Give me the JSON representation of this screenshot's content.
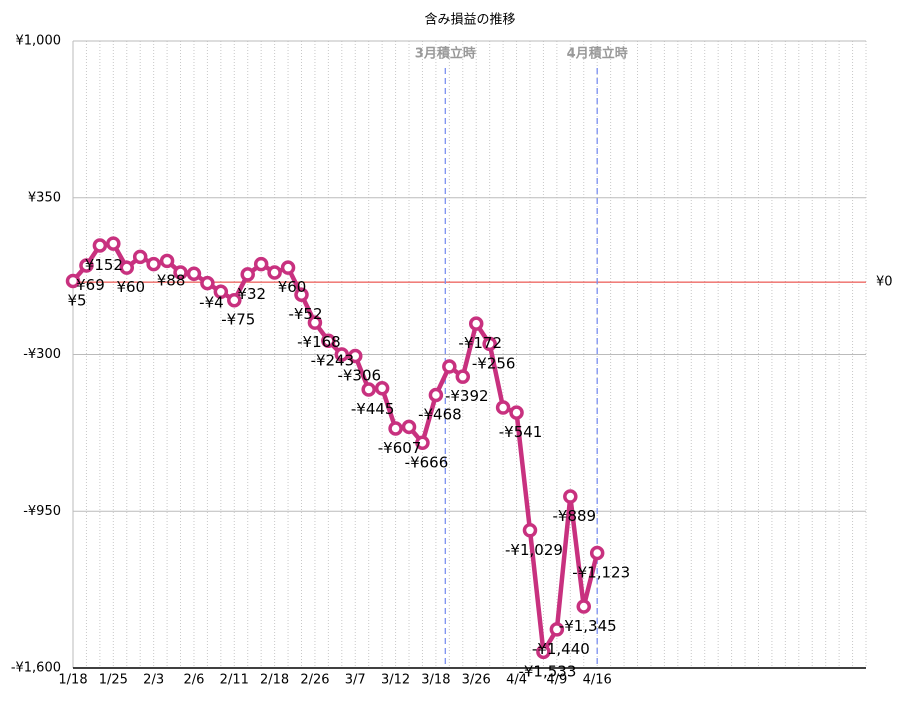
{
  "chart_data": {
    "type": "line",
    "title": "含み損益の推移",
    "categories": [
      "1/18",
      null,
      null,
      "1/25",
      null,
      null,
      "2/3",
      null,
      null,
      "2/6",
      null,
      null,
      "2/11",
      null,
      null,
      "2/18",
      null,
      null,
      "2/26",
      null,
      null,
      "3/7",
      null,
      null,
      "3/12",
      null,
      null,
      "3/18",
      null,
      null,
      "3/26",
      null,
      null,
      "4/4",
      null,
      null,
      "4/9",
      null,
      null,
      "4/16",
      null,
      null,
      null,
      null,
      null,
      null,
      null,
      null,
      null,
      null,
      null,
      null,
      null,
      null,
      null,
      null,
      null,
      null,
      null,
      null
    ],
    "series": [
      {
        "color": "#c8317f",
        "values": [
          5,
          69,
          152,
          160,
          60,
          105,
          75,
          88,
          40,
          35,
          -4,
          -40,
          -75,
          32,
          75,
          40,
          60,
          -52,
          -168,
          -243,
          -300,
          -306,
          -445,
          -440,
          -607,
          -600,
          -666,
          -468,
          -350,
          -392,
          -172,
          -256,
          -520,
          -541,
          -1029,
          -1533,
          -1440,
          -889,
          -1345,
          -1123,
          null,
          null,
          null,
          null,
          null,
          null,
          null,
          null,
          null,
          null,
          null,
          null,
          null,
          null,
          null,
          null,
          null,
          null,
          null,
          null
        ],
        "value_labels": [
          "¥5",
          "¥69",
          "¥152",
          null,
          "¥60",
          null,
          null,
          "¥88",
          null,
          null,
          "-¥4",
          null,
          "-¥75",
          "¥32",
          null,
          null,
          "¥60",
          "-¥52",
          "-¥168",
          "-¥243",
          null,
          "-¥306",
          "-¥445",
          null,
          "-¥607",
          null,
          "-¥666",
          "-¥468",
          null,
          "-¥392",
          "-¥172",
          "-¥256",
          null,
          "-¥541",
          "-¥1,029",
          "-¥1,533",
          "-¥1,440",
          "-¥889",
          "-¥1,345",
          "-¥1,123",
          null,
          null,
          null,
          null,
          null,
          null,
          null,
          null,
          null,
          null,
          null,
          null,
          null,
          null,
          null,
          null,
          null,
          null,
          null,
          null
        ]
      }
    ],
    "ylim": [
      -1600,
      1000
    ],
    "yticks": [
      {
        "value": 1000,
        "label": "¥1,000"
      },
      {
        "value": 350,
        "label": "¥350"
      },
      {
        "value": -300,
        "label": "-¥300"
      },
      {
        "value": -950,
        "label": "-¥950"
      },
      {
        "value": -1600,
        "label": "-¥1,600"
      }
    ],
    "grid": true,
    "reference_line": {
      "value": 0,
      "label": "¥0",
      "color": "#e8302a"
    },
    "annotations": [
      {
        "label": "3月積立時",
        "x": 27.7
      },
      {
        "label": "4月積立時",
        "x": 39
      }
    ]
  }
}
